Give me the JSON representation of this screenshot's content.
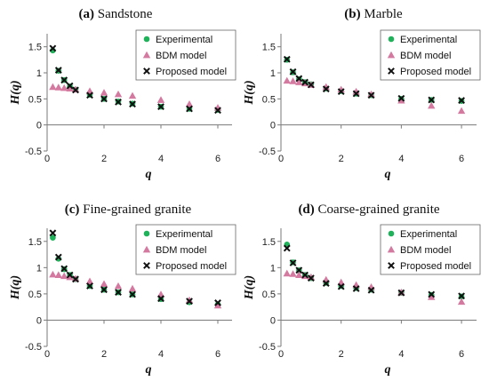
{
  "colors": {
    "experimental": "#1fb25a",
    "bdm": "#d4799f",
    "proposed": "#111111",
    "axis": "#7a7a7a"
  },
  "chart_data": [
    {
      "type": "scatter",
      "panel_letter": "(a)",
      "title": "Sandstone",
      "xlabel": "q",
      "ylabel": "H(q)",
      "xlim": [
        0,
        6.5
      ],
      "ylim": [
        -0.5,
        1.75
      ],
      "xticks": [
        0,
        2,
        4,
        6
      ],
      "yticks": [
        -0.5,
        0,
        0.5,
        1,
        1.5
      ],
      "grid": false,
      "legend_position": "top-right",
      "series": [
        {
          "name": "Experimental",
          "marker": "circle",
          "x": [
            0.2,
            0.4,
            0.6,
            0.8,
            1,
            1.5,
            2,
            2.5,
            3,
            4,
            5,
            6
          ],
          "y": [
            1.43,
            1.04,
            0.86,
            0.74,
            0.68,
            0.58,
            0.5,
            0.45,
            0.41,
            0.35,
            0.31,
            0.29
          ]
        },
        {
          "name": "BDM model",
          "marker": "triangle",
          "x": [
            0.2,
            0.4,
            0.6,
            0.8,
            1,
            1.5,
            2,
            2.5,
            3,
            4,
            5,
            6
          ],
          "y": [
            0.73,
            0.72,
            0.71,
            0.7,
            0.68,
            0.65,
            0.62,
            0.59,
            0.56,
            0.48,
            0.4,
            0.33
          ]
        },
        {
          "name": "Proposed model",
          "marker": "cross",
          "x": [
            0.2,
            0.4,
            0.6,
            0.8,
            1,
            1.5,
            2,
            2.5,
            3,
            4,
            5,
            6
          ],
          "y": [
            1.47,
            1.05,
            0.86,
            0.75,
            0.67,
            0.57,
            0.5,
            0.44,
            0.4,
            0.35,
            0.31,
            0.28
          ]
        }
      ]
    },
    {
      "type": "scatter",
      "panel_letter": "(b)",
      "title": "Marble",
      "xlabel": "q",
      "ylabel": "H(q)",
      "xlim": [
        0,
        6.5
      ],
      "ylim": [
        -0.5,
        1.75
      ],
      "xticks": [
        0,
        2,
        4,
        6
      ],
      "yticks": [
        -0.5,
        0,
        0.5,
        1,
        1.5
      ],
      "grid": false,
      "legend_position": "top-right",
      "series": [
        {
          "name": "Experimental",
          "marker": "circle",
          "x": [
            0.2,
            0.4,
            0.6,
            0.8,
            1,
            1.5,
            2,
            2.5,
            3,
            4,
            5,
            6
          ],
          "y": [
            1.25,
            1.01,
            0.88,
            0.82,
            0.78,
            0.7,
            0.65,
            0.6,
            0.57,
            0.5,
            0.48,
            0.46
          ]
        },
        {
          "name": "BDM model",
          "marker": "triangle",
          "x": [
            0.2,
            0.4,
            0.6,
            0.8,
            1,
            1.5,
            2,
            2.5,
            3,
            4,
            5,
            6
          ],
          "y": [
            0.85,
            0.84,
            0.82,
            0.8,
            0.77,
            0.73,
            0.68,
            0.64,
            0.59,
            0.47,
            0.37,
            0.27
          ]
        },
        {
          "name": "Proposed model",
          "marker": "cross",
          "x": [
            0.2,
            0.4,
            0.6,
            0.8,
            1,
            1.5,
            2,
            2.5,
            3,
            4,
            5,
            6
          ],
          "y": [
            1.26,
            1.02,
            0.89,
            0.82,
            0.77,
            0.69,
            0.64,
            0.6,
            0.57,
            0.51,
            0.48,
            0.47
          ]
        }
      ]
    },
    {
      "type": "scatter",
      "panel_letter": "(c)",
      "title": "Fine-grained granite",
      "xlabel": "q",
      "ylabel": "H(q)",
      "xlim": [
        0,
        6.5
      ],
      "ylim": [
        -0.5,
        1.75
      ],
      "xticks": [
        0,
        2,
        4,
        6
      ],
      "yticks": [
        -0.5,
        0,
        0.5,
        1,
        1.5
      ],
      "grid": false,
      "legend_position": "top-right",
      "series": [
        {
          "name": "Experimental",
          "marker": "circle",
          "x": [
            0.2,
            0.4,
            0.6,
            0.8,
            1,
            1.5,
            2,
            2.5,
            3,
            4,
            5,
            6
          ],
          "y": [
            1.57,
            1.17,
            0.97,
            0.86,
            0.78,
            0.65,
            0.58,
            0.53,
            0.49,
            0.4,
            0.34,
            0.3
          ]
        },
        {
          "name": "BDM model",
          "marker": "triangle",
          "x": [
            0.2,
            0.4,
            0.6,
            0.8,
            1,
            1.5,
            2,
            2.5,
            3,
            4,
            5,
            6
          ],
          "y": [
            0.87,
            0.86,
            0.84,
            0.82,
            0.79,
            0.74,
            0.69,
            0.65,
            0.6,
            0.49,
            0.38,
            0.28
          ]
        },
        {
          "name": "Proposed model",
          "marker": "cross",
          "x": [
            0.2,
            0.4,
            0.6,
            0.8,
            1,
            1.5,
            2,
            2.5,
            3,
            4,
            5,
            6
          ],
          "y": [
            1.66,
            1.2,
            0.98,
            0.86,
            0.78,
            0.65,
            0.58,
            0.53,
            0.49,
            0.41,
            0.36,
            0.33
          ]
        }
      ]
    },
    {
      "type": "scatter",
      "panel_letter": "(d)",
      "title": "Coarse-grained granite",
      "xlabel": "q",
      "ylabel": "H(q)",
      "xlim": [
        0,
        6.5
      ],
      "ylim": [
        -0.5,
        1.75
      ],
      "xticks": [
        0,
        2,
        4,
        6
      ],
      "yticks": [
        -0.5,
        0,
        0.5,
        1,
        1.5
      ],
      "grid": false,
      "legend_position": "top-right",
      "series": [
        {
          "name": "Experimental",
          "marker": "circle",
          "x": [
            0.2,
            0.4,
            0.6,
            0.8,
            1,
            1.5,
            2,
            2.5,
            3,
            4,
            5,
            6
          ],
          "y": [
            1.44,
            1.1,
            0.95,
            0.86,
            0.8,
            0.71,
            0.65,
            0.61,
            0.58,
            0.52,
            0.48,
            0.45
          ]
        },
        {
          "name": "BDM model",
          "marker": "triangle",
          "x": [
            0.2,
            0.4,
            0.6,
            0.8,
            1,
            1.5,
            2,
            2.5,
            3,
            4,
            5,
            6
          ],
          "y": [
            0.89,
            0.88,
            0.86,
            0.84,
            0.82,
            0.77,
            0.72,
            0.67,
            0.63,
            0.53,
            0.44,
            0.35
          ]
        },
        {
          "name": "Proposed model",
          "marker": "cross",
          "x": [
            0.2,
            0.4,
            0.6,
            0.8,
            1,
            1.5,
            2,
            2.5,
            3,
            4,
            5,
            6
          ],
          "y": [
            1.37,
            1.09,
            0.95,
            0.86,
            0.8,
            0.7,
            0.64,
            0.6,
            0.57,
            0.52,
            0.49,
            0.46
          ]
        }
      ]
    }
  ]
}
